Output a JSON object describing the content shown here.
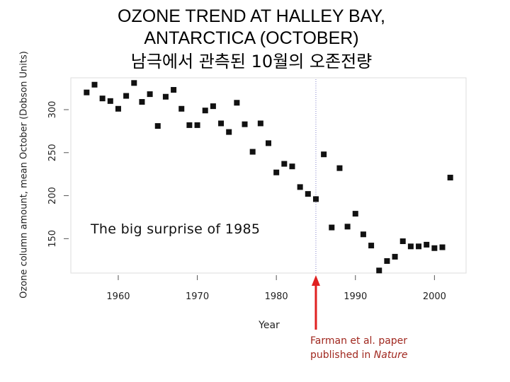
{
  "title": {
    "line1": "OZONE TREND AT HALLEY BAY,",
    "line2": "ANTARCTICA (OCTOBER)",
    "line3": "남극에서 관측된 10월의 오존전량"
  },
  "annotation": "The big surprise of 1985",
  "caption": {
    "line1": "Farman et al. paper",
    "line2_prefix": "published in ",
    "line2_journal": "Nature"
  },
  "colors": {
    "points": "#111111",
    "reference_line": "#8080c8",
    "arrow": "#e02020",
    "caption": "#a0281f"
  },
  "chart_data": {
    "type": "scatter",
    "xlabel": "Year",
    "ylabel": "Ozone column amount, mean October (Dobson Units)",
    "xlim": [
      1954,
      2004
    ],
    "ylim": [
      110,
      337
    ],
    "xticks": [
      1960,
      1970,
      1980,
      1990,
      2000
    ],
    "yticks": [
      150,
      200,
      250,
      300
    ],
    "grid": false,
    "reference_line_x": 1985,
    "arrow_x": 1985,
    "points": [
      {
        "x": 1956,
        "y": 320
      },
      {
        "x": 1957,
        "y": 329
      },
      {
        "x": 1958,
        "y": 313
      },
      {
        "x": 1959,
        "y": 310
      },
      {
        "x": 1960,
        "y": 301
      },
      {
        "x": 1961,
        "y": 316
      },
      {
        "x": 1962,
        "y": 331
      },
      {
        "x": 1963,
        "y": 309
      },
      {
        "x": 1964,
        "y": 318
      },
      {
        "x": 1965,
        "y": 281
      },
      {
        "x": 1966,
        "y": 315
      },
      {
        "x": 1967,
        "y": 323
      },
      {
        "x": 1968,
        "y": 301
      },
      {
        "x": 1969,
        "y": 282
      },
      {
        "x": 1970,
        "y": 282
      },
      {
        "x": 1971,
        "y": 299
      },
      {
        "x": 1972,
        "y": 304
      },
      {
        "x": 1973,
        "y": 284
      },
      {
        "x": 1974,
        "y": 274
      },
      {
        "x": 1975,
        "y": 308
      },
      {
        "x": 1976,
        "y": 283
      },
      {
        "x": 1977,
        "y": 251
      },
      {
        "x": 1978,
        "y": 284
      },
      {
        "x": 1979,
        "y": 261
      },
      {
        "x": 1980,
        "y": 227
      },
      {
        "x": 1981,
        "y": 237
      },
      {
        "x": 1982,
        "y": 234
      },
      {
        "x": 1983,
        "y": 210
      },
      {
        "x": 1984,
        "y": 202
      },
      {
        "x": 1985,
        "y": 196
      },
      {
        "x": 1986,
        "y": 248
      },
      {
        "x": 1987,
        "y": 163
      },
      {
        "x": 1988,
        "y": 232
      },
      {
        "x": 1989,
        "y": 164
      },
      {
        "x": 1990,
        "y": 179
      },
      {
        "x": 1991,
        "y": 155
      },
      {
        "x": 1992,
        "y": 142
      },
      {
        "x": 1993,
        "y": 113
      },
      {
        "x": 1994,
        "y": 124
      },
      {
        "x": 1995,
        "y": 129
      },
      {
        "x": 1996,
        "y": 147
      },
      {
        "x": 1997,
        "y": 141
      },
      {
        "x": 1998,
        "y": 141
      },
      {
        "x": 1999,
        "y": 143
      },
      {
        "x": 2000,
        "y": 139
      },
      {
        "x": 2001,
        "y": 140
      },
      {
        "x": 2002,
        "y": 221
      }
    ]
  }
}
